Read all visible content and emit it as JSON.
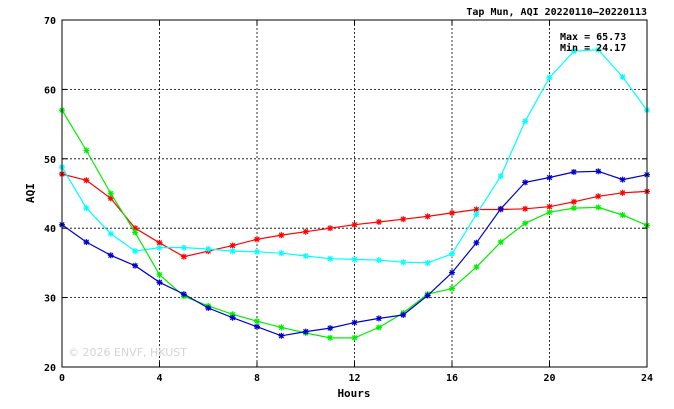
{
  "chart_data": {
    "type": "line",
    "title": "Tap Mun, AQI 20220110–20220113",
    "xlabel": "Hours",
    "ylabel": "AQI",
    "xlim": [
      0,
      24
    ],
    "ylim": [
      20,
      70
    ],
    "xticks": [
      0,
      4,
      8,
      12,
      16,
      20,
      24
    ],
    "yticks": [
      20,
      30,
      40,
      50,
      60,
      70
    ],
    "grid": true,
    "stats": {
      "max": "Max = 65.73",
      "min": "Min = 24.17"
    },
    "watermark": "© 2026  ENVF, HKUST",
    "x": [
      0,
      1,
      2,
      3,
      4,
      5,
      6,
      7,
      8,
      9,
      10,
      11,
      12,
      13,
      14,
      15,
      16,
      17,
      18,
      19,
      20,
      21,
      22,
      23,
      24
    ],
    "series": [
      {
        "color": "#ff0000",
        "values": [
          47.8,
          46.9,
          44.3,
          40.0,
          37.9,
          35.9,
          36.7,
          37.5,
          38.4,
          39.0,
          39.5,
          40.0,
          40.5,
          40.9,
          41.3,
          41.7,
          42.2,
          42.7,
          42.7,
          42.8,
          43.1,
          43.8,
          44.6,
          45.1,
          45.3
        ]
      },
      {
        "color": "#00ffff",
        "values": [
          48.8,
          42.9,
          39.2,
          36.7,
          37.2,
          37.2,
          37.0,
          36.7,
          36.6,
          36.4,
          36.0,
          35.6,
          35.5,
          35.4,
          35.1,
          35.0,
          36.3,
          42.0,
          47.5,
          55.4,
          61.7,
          65.5,
          65.7,
          61.8,
          57.0
        ]
      },
      {
        "color": "#00ee00",
        "values": [
          57.0,
          51.2,
          45.0,
          39.4,
          33.3,
          30.2,
          28.8,
          27.6,
          26.6,
          25.7,
          24.9,
          24.2,
          24.2,
          25.7,
          27.8,
          30.5,
          31.3,
          34.4,
          38.0,
          40.7,
          42.3,
          42.9,
          43.0,
          41.9,
          40.4
        ]
      },
      {
        "color": "#0000cc",
        "values": [
          40.5,
          38.0,
          36.1,
          34.6,
          32.2,
          30.5,
          28.5,
          27.1,
          25.8,
          24.5,
          25.1,
          25.6,
          26.4,
          27.0,
          27.5,
          30.3,
          33.6,
          37.9,
          42.8,
          46.6,
          47.3,
          48.1,
          48.2,
          47.0,
          47.7
        ]
      }
    ]
  }
}
